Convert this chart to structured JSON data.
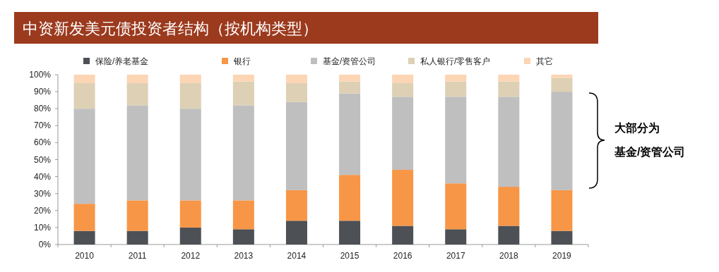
{
  "chart_data": {
    "type": "bar",
    "stacked": true,
    "title": "中资新发美元债投资者结构（按机构类型）",
    "categories": [
      "2010",
      "2011",
      "2012",
      "2013",
      "2014",
      "2015",
      "2016",
      "2017",
      "2018",
      "2019"
    ],
    "series": [
      {
        "name": "保险/养老基金",
        "color": "#4d5055",
        "values": [
          8,
          8,
          10,
          9,
          14,
          14,
          11,
          9,
          11,
          8
        ]
      },
      {
        "name": "银行",
        "color": "#f79646",
        "values": [
          16,
          18,
          16,
          17,
          18,
          27,
          33,
          27,
          23,
          24
        ]
      },
      {
        "name": "基金/资管公司",
        "color": "#bfbfbf",
        "values": [
          56,
          56,
          54,
          56,
          52,
          48,
          43,
          51,
          53,
          58
        ]
      },
      {
        "name": "私人银行/零售客户",
        "color": "#ddd0b4",
        "values": [
          15,
          13,
          15,
          14,
          11,
          7,
          8,
          9,
          9,
          8
        ]
      },
      {
        "name": "其它",
        "color": "#fcd5b4",
        "values": [
          5,
          5,
          5,
          4,
          5,
          4,
          5,
          4,
          4,
          2
        ]
      }
    ],
    "ylim": [
      0,
      100
    ],
    "yticks": [
      {
        "value": 0,
        "label": "0%"
      },
      {
        "value": 10,
        "label": "10%"
      },
      {
        "value": 20,
        "label": "20%"
      },
      {
        "value": 30,
        "label": "30%"
      },
      {
        "value": 40,
        "label": "40%"
      },
      {
        "value": 50,
        "label": "50%"
      },
      {
        "value": 60,
        "label": "60%"
      },
      {
        "value": 70,
        "label": "70%"
      },
      {
        "value": 80,
        "label": "80%"
      },
      {
        "value": 90,
        "label": "90%"
      },
      {
        "value": 100,
        "label": "100%"
      }
    ],
    "legend": "top",
    "grid": false,
    "annotations": [
      "大部分为",
      "基金/资管公司"
    ]
  }
}
